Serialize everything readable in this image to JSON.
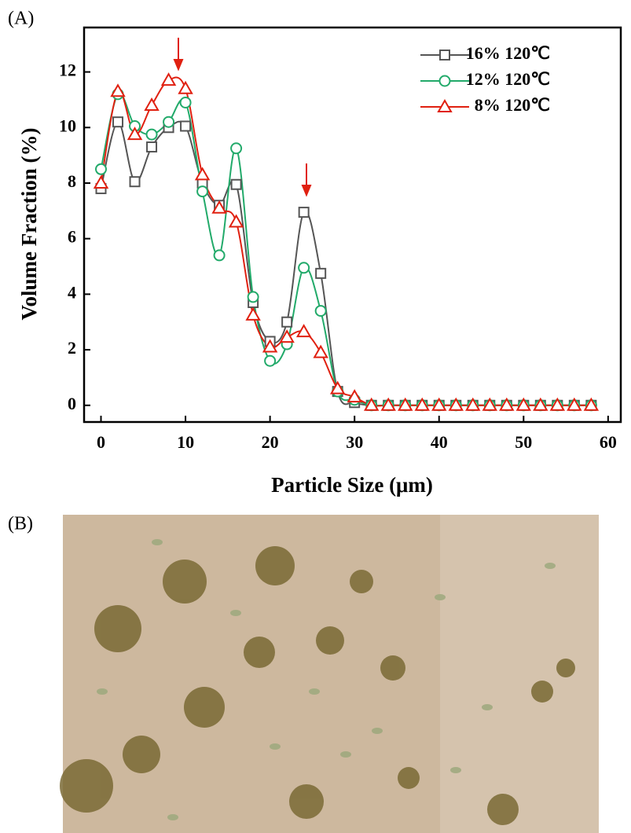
{
  "chart_data": {
    "type": "line",
    "panel_label": "(A)",
    "xlabel": "Particle Size (μm)",
    "ylabel": "Volume Fraction (%)",
    "x": [
      0,
      2,
      4,
      6,
      8,
      10,
      12,
      14,
      16,
      18,
      20,
      22,
      24,
      26,
      28,
      30,
      32,
      34,
      36,
      38,
      40,
      42,
      44,
      46,
      48,
      50,
      52,
      54,
      56,
      58
    ],
    "series": [
      {
        "name": "16% 120℃",
        "color": "#555555",
        "marker": "square",
        "values": [
          7.8,
          10.2,
          8.05,
          9.3,
          10.0,
          10.05,
          8.0,
          7.2,
          7.95,
          3.7,
          2.3,
          3.0,
          6.95,
          4.75,
          0.5,
          0.1,
          0,
          0,
          0,
          0,
          0,
          0,
          0,
          0,
          0,
          0,
          0,
          0,
          0,
          0
        ]
      },
      {
        "name": "12% 120℃",
        "color": "#22aa6a",
        "marker": "circle",
        "values": [
          8.5,
          11.2,
          10.05,
          9.75,
          10.2,
          10.9,
          7.7,
          5.4,
          9.25,
          3.9,
          1.6,
          2.2,
          4.95,
          3.4,
          0.5,
          0.2,
          0,
          0,
          0,
          0,
          0,
          0,
          0,
          0,
          0,
          0,
          0,
          0,
          0,
          0
        ]
      },
      {
        "name": "8% 120℃",
        "color": "#e02010",
        "marker": "triangle",
        "values": [
          8.0,
          11.3,
          9.75,
          10.8,
          11.7,
          11.4,
          8.3,
          7.1,
          6.6,
          3.25,
          2.1,
          2.45,
          2.65,
          1.9,
          0.6,
          0.3,
          0,
          0,
          0,
          0,
          0,
          0,
          0,
          0,
          0,
          0,
          0,
          0,
          0,
          0
        ]
      }
    ],
    "xlim": [
      -2,
      61.5
    ],
    "ylim": [
      -0.6,
      13.6
    ],
    "xticks": [
      0,
      10,
      20,
      30,
      40,
      50,
      60
    ],
    "yticks": [
      0,
      2,
      4,
      6,
      8,
      10,
      12
    ],
    "legend": "upper right"
  },
  "image_panel": {
    "label": "(B)"
  }
}
